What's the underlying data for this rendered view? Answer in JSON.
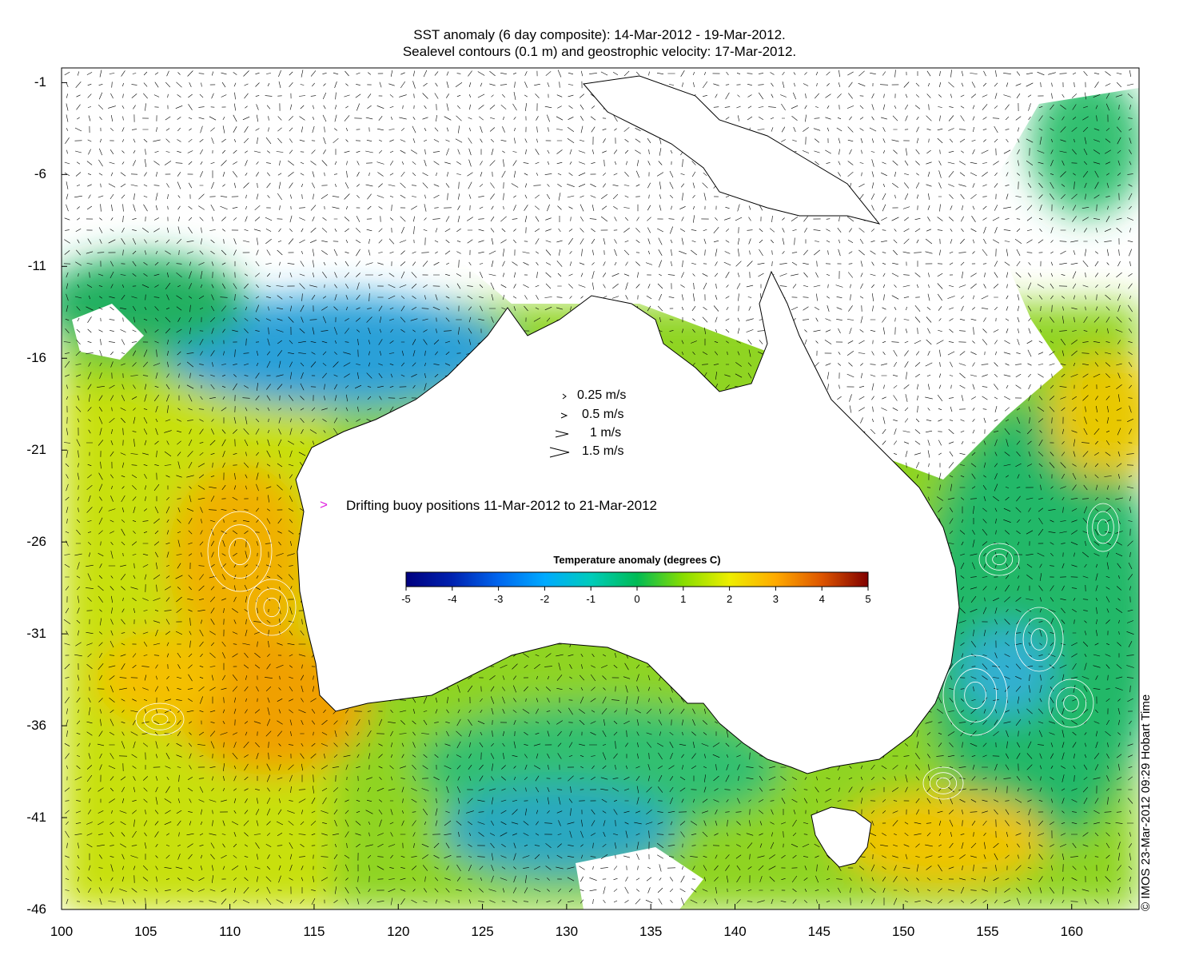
{
  "title": {
    "line1": "SST anomaly (6 day composite): 14-Mar-2012 - 19-Mar-2012.",
    "line2": "Sealevel contours (0.1 m) and geostrophic velocity: 17-Mar-2012."
  },
  "axes": {
    "lon_range": [
      100,
      164
    ],
    "lat_range": [
      -46,
      -0.2
    ],
    "x_ticks": [
      "100",
      "105",
      "110",
      "115",
      "120",
      "125",
      "130",
      "135",
      "140",
      "145",
      "150",
      "155",
      "160"
    ],
    "y_ticks": [
      "-1",
      "-6",
      "-11",
      "-16",
      "-21",
      "-26",
      "-31",
      "-36",
      "-41",
      "-46"
    ]
  },
  "velocity_legend": [
    {
      "label": "0.25 m/s",
      "speed": 0.25
    },
    {
      "label": "0.5 m/s",
      "speed": 0.5
    },
    {
      "label": "1 m/s",
      "speed": 1
    },
    {
      "label": "1.5 m/s",
      "speed": 1.5
    }
  ],
  "buoy_legend": {
    "label": "Drifting buoy positions 11-Mar-2012 to 21-Mar-2012",
    "marker_color": "#e020e0"
  },
  "colorbar": {
    "title": "Temperature anomaly (degrees C)",
    "range": [
      -5,
      5
    ],
    "ticks": [
      "-5",
      "-4",
      "-3",
      "-2",
      "-1",
      "0",
      "1",
      "2",
      "3",
      "4",
      "5"
    ],
    "colors": [
      "#00007f",
      "#0033cc",
      "#0099ff",
      "#00cccc",
      "#00cc66",
      "#22bb22",
      "#99dd00",
      "#eeee00",
      "#ffaa00",
      "#e06000",
      "#c02000",
      "#800000"
    ]
  },
  "credit": "© IMOS 23-Mar-2012 09:29 Hobart Time",
  "chart_data": {
    "type": "heatmap",
    "title": "SST anomaly (6 day composite): 14-Mar-2012 - 19-Mar-2012.",
    "subtitle": "Sealevel contours (0.1 m) and geostrophic velocity: 17-Mar-2012.",
    "xlabel": "",
    "ylabel": "",
    "xlim": [
      100,
      164
    ],
    "ylim": [
      -46,
      -0.2
    ],
    "colorbar_label": "Temperature anomaly (degrees C)",
    "colorbar_range": [
      -5,
      5
    ],
    "grid": false
  }
}
